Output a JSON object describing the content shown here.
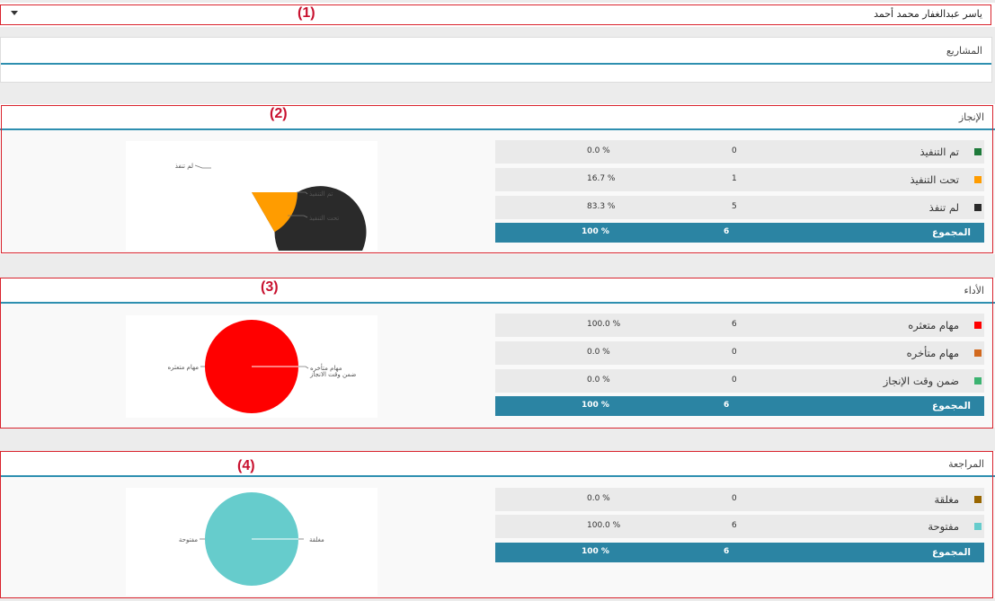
{
  "user_bar": {
    "name": "ياسر عبدالغفار محمد أحمد"
  },
  "annotations": [
    "(1)",
    "(2)",
    "(3)",
    "(4)"
  ],
  "projects": {
    "title": "المشاريع"
  },
  "total_label": "المجموع",
  "sections": [
    {
      "title": "الإنجاز",
      "rows": [
        {
          "label": "تم التنفيذ",
          "count": "0",
          "percent": "0.0 %",
          "color": "#1e7a3a"
        },
        {
          "label": "تحت التنفيذ",
          "count": "1",
          "percent": "16.7 %",
          "color": "#ff9c00"
        },
        {
          "label": "لم تنفذ",
          "count": "5",
          "percent": "83.3 %",
          "color": "#2a2a2a"
        }
      ],
      "total": {
        "count": "6",
        "percent": "100 %"
      },
      "chart_labels": [
        "لم تنفذ",
        "تم التنفيذ",
        "تحت التنفيذ"
      ]
    },
    {
      "title": "الأداء",
      "rows": [
        {
          "label": "مهام متعثره",
          "count": "6",
          "percent": "100.0 %",
          "color": "#ff0000"
        },
        {
          "label": "مهام متأخره",
          "count": "0",
          "percent": "0.0 %",
          "color": "#d2691e"
        },
        {
          "label": "ضمن وقت الإنجاز",
          "count": "0",
          "percent": "0.0 %",
          "color": "#3cb371"
        }
      ],
      "total": {
        "count": "6",
        "percent": "100 %"
      },
      "chart_labels": [
        "مهام متعثره",
        "مهام متأخره",
        "ضمن وقت الانجاز"
      ]
    },
    {
      "title": "المراجعة",
      "rows": [
        {
          "label": "مغلقة",
          "count": "0",
          "percent": "0.0 %",
          "color": "#996600"
        },
        {
          "label": "مفتوحة",
          "count": "6",
          "percent": "100.0 %",
          "color": "#66cccc"
        }
      ],
      "total": {
        "count": "6",
        "percent": "100 %"
      },
      "chart_labels": [
        "مفتوحة",
        "مغلقة"
      ]
    }
  ],
  "chart_data": [
    {
      "type": "pie",
      "categories": [
        "تم التنفيذ",
        "تحت التنفيذ",
        "لم تنفذ"
      ],
      "values": [
        0,
        1,
        5
      ],
      "colors": [
        "#1e7a3a",
        "#ff9c00",
        "#2a2a2a"
      ]
    },
    {
      "type": "pie",
      "categories": [
        "مهام متعثره",
        "مهام متأخره",
        "ضمن وقت الإنجاز"
      ],
      "values": [
        6,
        0,
        0
      ],
      "colors": [
        "#ff0000",
        "#d2691e",
        "#3cb371"
      ]
    },
    {
      "type": "pie",
      "categories": [
        "مغلقة",
        "مفتوحة"
      ],
      "values": [
        0,
        6
      ],
      "colors": [
        "#996600",
        "#66cccc"
      ]
    }
  ]
}
